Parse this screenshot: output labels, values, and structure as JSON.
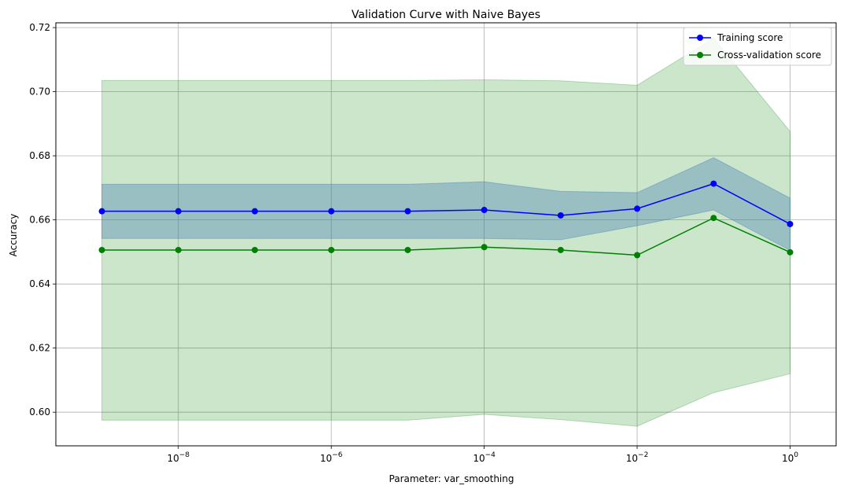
{
  "chart_data": {
    "type": "line",
    "title": "Validation Curve with Naive Bayes",
    "xlabel": "Parameter: var_smoothing",
    "ylabel": "Accuracy",
    "x_scale": "log",
    "x": [
      1e-09,
      1e-08,
      1e-07,
      1e-06,
      1e-05,
      0.0001,
      0.001,
      0.01,
      0.1,
      1
    ],
    "xlim": [
      2.5e-10,
      4.0
    ],
    "ylim": [
      0.5895,
      0.7215
    ],
    "x_ticks": [
      {
        "value": 1e-08,
        "base": "10",
        "exp": "−8"
      },
      {
        "value": 1e-06,
        "base": "10",
        "exp": "−6"
      },
      {
        "value": 0.0001,
        "base": "10",
        "exp": "−4"
      },
      {
        "value": 0.01,
        "base": "10",
        "exp": "−2"
      },
      {
        "value": 1,
        "base": "10",
        "exp": "0"
      }
    ],
    "y_ticks": [
      {
        "value": 0.6,
        "label": "0.60"
      },
      {
        "value": 0.62,
        "label": "0.62"
      },
      {
        "value": 0.64,
        "label": "0.64"
      },
      {
        "value": 0.66,
        "label": "0.66"
      },
      {
        "value": 0.68,
        "label": "0.68"
      },
      {
        "value": 0.7,
        "label": "0.70"
      },
      {
        "value": 0.72,
        "label": "0.72"
      }
    ],
    "grid": true,
    "legend_position": "top-right",
    "series": [
      {
        "name": "Training score",
        "color": "#0000ff",
        "band_color": "#4682b4",
        "values": [
          0.6627,
          0.6627,
          0.6627,
          0.6627,
          0.6627,
          0.6631,
          0.6614,
          0.6635,
          0.6713,
          0.6587
        ],
        "band_lower": [
          0.6542,
          0.6542,
          0.6542,
          0.6542,
          0.6542,
          0.6542,
          0.6538,
          0.6582,
          0.6631,
          0.6505
        ],
        "band_upper": [
          0.6711,
          0.6711,
          0.6711,
          0.6711,
          0.6711,
          0.6719,
          0.6689,
          0.6685,
          0.6794,
          0.6668
        ]
      },
      {
        "name": "Cross-validation score",
        "color": "#008000",
        "band_color": "#008000",
        "values": [
          0.6506,
          0.6506,
          0.6506,
          0.6506,
          0.6506,
          0.6515,
          0.6506,
          0.649,
          0.6606,
          0.6499
        ],
        "band_lower": [
          0.5975,
          0.5975,
          0.5975,
          0.5975,
          0.5975,
          0.5993,
          0.5977,
          0.5956,
          0.6061,
          0.612
        ],
        "band_upper": [
          0.7035,
          0.7035,
          0.7035,
          0.7035,
          0.7035,
          0.7037,
          0.7034,
          0.702,
          0.7167,
          0.6876
        ]
      }
    ]
  }
}
